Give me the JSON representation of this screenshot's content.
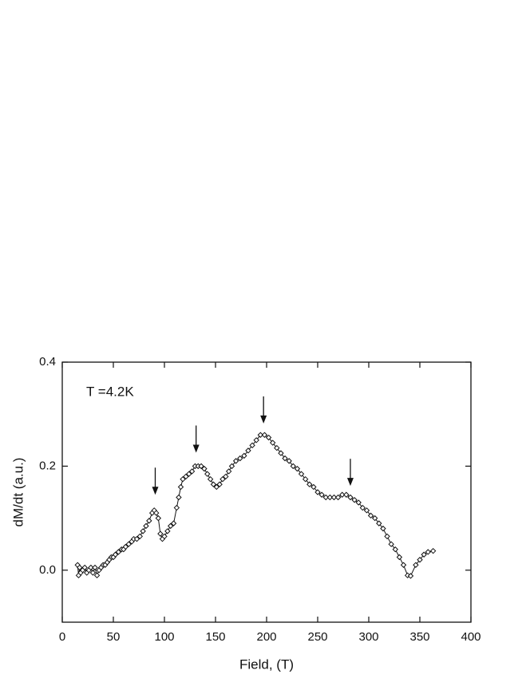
{
  "chart_data": {
    "type": "line",
    "xlabel": "Field, (T)",
    "ylabel": "dM/dt (a.u.)",
    "annotation": "T =4.2K",
    "color": "#111111",
    "marker": "open-diamond",
    "x": [
      15,
      16,
      17,
      18,
      20,
      22,
      24,
      26,
      28,
      30,
      32,
      34,
      36,
      38,
      40,
      42,
      44,
      46,
      48,
      50,
      52,
      55,
      58,
      60,
      62,
      65,
      68,
      70,
      73,
      76,
      79,
      82,
      85,
      88,
      90,
      92,
      94,
      96,
      98,
      100,
      103,
      106,
      109,
      112,
      114,
      116,
      118,
      121,
      124,
      127,
      130,
      133,
      136,
      139,
      142,
      145,
      148,
      151,
      154,
      157,
      160,
      163,
      166,
      170,
      174,
      178,
      182,
      186,
      190,
      194,
      198,
      202,
      206,
      210,
      214,
      218,
      222,
      226,
      230,
      234,
      238,
      242,
      246,
      250,
      254,
      258,
      262,
      266,
      270,
      274,
      278,
      282,
      286,
      290,
      294,
      298,
      302,
      306,
      310,
      314,
      318,
      322,
      326,
      330,
      334,
      338,
      341,
      346,
      350,
      354,
      358,
      363
    ],
    "values": [
      0.01,
      -0.01,
      0.005,
      -0.005,
      0.0,
      0.005,
      -0.005,
      0.0,
      0.005,
      -0.005,
      0.005,
      -0.01,
      0.0,
      0.005,
      0.01,
      0.01,
      0.015,
      0.02,
      0.025,
      0.025,
      0.03,
      0.035,
      0.04,
      0.04,
      0.045,
      0.05,
      0.055,
      0.06,
      0.06,
      0.065,
      0.075,
      0.085,
      0.095,
      0.11,
      0.115,
      0.11,
      0.1,
      0.07,
      0.06,
      0.065,
      0.075,
      0.085,
      0.09,
      0.12,
      0.14,
      0.16,
      0.175,
      0.18,
      0.185,
      0.19,
      0.2,
      0.2,
      0.2,
      0.195,
      0.185,
      0.175,
      0.165,
      0.16,
      0.165,
      0.175,
      0.18,
      0.19,
      0.2,
      0.21,
      0.215,
      0.22,
      0.23,
      0.24,
      0.25,
      0.26,
      0.26,
      0.255,
      0.245,
      0.235,
      0.225,
      0.215,
      0.21,
      0.2,
      0.195,
      0.185,
      0.175,
      0.165,
      0.16,
      0.15,
      0.145,
      0.14,
      0.14,
      0.14,
      0.14,
      0.145,
      0.145,
      0.14,
      0.135,
      0.13,
      0.12,
      0.115,
      0.105,
      0.1,
      0.09,
      0.08,
      0.065,
      0.05,
      0.04,
      0.025,
      0.01,
      -0.01,
      -0.011,
      0.01,
      0.02,
      0.03,
      0.035,
      0.037
    ],
    "arrows": [
      {
        "x": 91,
        "y": 0.145
      },
      {
        "x": 131,
        "y": 0.226
      },
      {
        "x": 197,
        "y": 0.282
      },
      {
        "x": 282,
        "y": 0.162
      }
    ],
    "xlim": [
      0,
      400
    ],
    "xticks": [
      0,
      50,
      100,
      150,
      200,
      250,
      300,
      350,
      400
    ],
    "ylim": [
      -0.1,
      0.4
    ],
    "yticks": [
      {
        "value": 0,
        "label": "0.0"
      },
      0.2,
      0.4
    ]
  }
}
